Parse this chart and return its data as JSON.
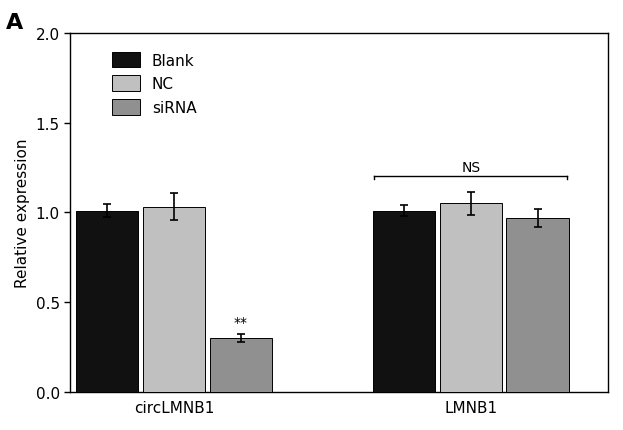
{
  "groups": [
    "circLMNB1",
    "LMNB1"
  ],
  "conditions": [
    "Blank",
    "NC",
    "siRNA"
  ],
  "values": {
    "circLMNB1": [
      1.01,
      1.03,
      0.3
    ],
    "LMNB1": [
      1.01,
      1.05,
      0.97
    ]
  },
  "errors": {
    "circLMNB1": [
      0.035,
      0.075,
      0.022
    ],
    "LMNB1": [
      0.03,
      0.065,
      0.05
    ]
  },
  "bar_colors": [
    "#111111",
    "#c0c0c0",
    "#909090"
  ],
  "ylabel": "Relative expression",
  "ylim": [
    0.0,
    2.0
  ],
  "yticks": [
    0.0,
    0.5,
    1.0,
    1.5,
    2.0
  ],
  "panel_label": "A",
  "annotation_circLMNB1": "**",
  "annotation_LMNB1": "NS",
  "legend_labels": [
    "Blank",
    "NC",
    "siRNA"
  ],
  "bar_width": 0.18,
  "group_centers": [
    0.38,
    1.18
  ],
  "figsize": [
    6.23,
    4.31
  ],
  "dpi": 100
}
